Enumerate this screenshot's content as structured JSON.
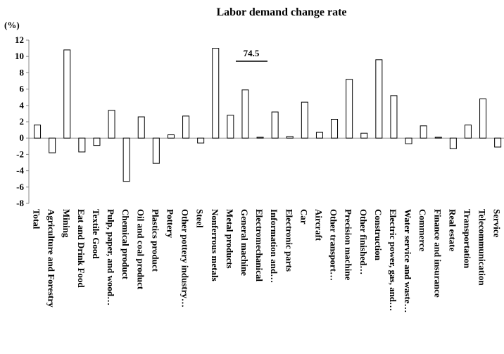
{
  "chart_data": {
    "type": "bar",
    "title": "Labor demand change rate",
    "y_unit": "(%)",
    "annotation": "74.5",
    "categories": [
      "Total",
      "Agriculture and Forestry",
      "Mining",
      "Eat and Drink Food",
      "Textile Good",
      "Pulp, paper, and wood…",
      "Chemical product",
      "Oil and coal product",
      "Plastics product",
      "Pottery",
      "Other pottery industry…",
      "Steel",
      "Nonferrous metals",
      "Metal products",
      "General machine",
      "Electromechanical",
      "Information and…",
      "Electronic parts",
      "Car",
      "Aircraft",
      "Other transport…",
      "Precision machine",
      "Other finished…",
      "Construction",
      "Electric power, gas, and…",
      "Water service and waste…",
      "Commerce",
      "Finance and insurance",
      "Real estate",
      "Transportation",
      "Telecommunication",
      "Service"
    ],
    "values": [
      1.6,
      -1.8,
      10.8,
      -1.7,
      -0.9,
      3.4,
      -5.3,
      2.6,
      -3.1,
      0.4,
      2.7,
      -0.6,
      11.0,
      2.8,
      5.9,
      0.1,
      3.2,
      0.2,
      4.4,
      0.7,
      2.3,
      7.2,
      0.6,
      9.6,
      5.2,
      -0.7,
      1.5,
      0.1,
      -1.3,
      1.6,
      4.8,
      -1.1
    ],
    "color": "#ffffff",
    "edge_color": "#000000",
    "ylim": [
      -8,
      12
    ],
    "yticks": [
      -8,
      -6,
      -4,
      -2,
      0,
      2,
      4,
      6,
      8,
      10,
      12
    ],
    "grid": false
  }
}
